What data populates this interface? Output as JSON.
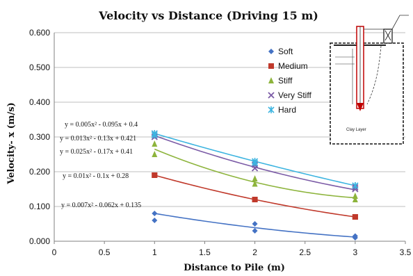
{
  "chart_data": {
    "type": "scatter",
    "title": "Velocity vs Distance (Driving 15 m)",
    "xlabel": "Distance to Pile (m)",
    "ylabel": "Velocity- x (m/s)",
    "xlim": [
      0,
      3.5
    ],
    "ylim": [
      0,
      0.6
    ],
    "x_ticks": [
      0,
      0.5,
      1,
      1.5,
      2,
      2.5,
      3,
      3.5
    ],
    "x_tick_labels": [
      "0",
      "0.5",
      "1",
      "1.5",
      "2",
      "2.5",
      "3",
      "3.5"
    ],
    "y_ticks": [
      0,
      0.1,
      0.2,
      0.3,
      0.4,
      0.5,
      0.6
    ],
    "y_tick_labels": [
      "0.000",
      "0.100",
      "0.200",
      "0.300",
      "0.400",
      "0.500",
      "0.600"
    ],
    "grid": "horizontal",
    "legend": "upper-right",
    "series": [
      {
        "name": "Soft",
        "marker": "diamond",
        "color": "#4472C4",
        "points": [
          [
            1,
            0.06
          ],
          [
            1,
            0.08
          ],
          [
            2,
            0.03
          ],
          [
            2,
            0.05
          ],
          [
            3,
            0.01
          ],
          [
            3,
            0.015
          ]
        ],
        "equation": "y = 0.007x² - 0.062x + 0.135",
        "coef": [
          0.007,
          -0.062,
          0.135
        ]
      },
      {
        "name": "Medium",
        "marker": "square",
        "color": "#C0392B",
        "points": [
          [
            1,
            0.19
          ],
          [
            1,
            0.19
          ],
          [
            2,
            0.12
          ],
          [
            2,
            0.12
          ],
          [
            3,
            0.07
          ],
          [
            3,
            0.07
          ]
        ],
        "equation": "y = 0.01x² - 0.1x + 0.28",
        "coef": [
          0.01,
          -0.1,
          0.28
        ]
      },
      {
        "name": "Stiff",
        "marker": "triangle",
        "color": "#8DB43C",
        "points": [
          [
            1,
            0.25
          ],
          [
            1,
            0.28
          ],
          [
            2,
            0.165
          ],
          [
            2,
            0.18
          ],
          [
            3,
            0.12
          ],
          [
            3,
            0.13
          ]
        ],
        "equation": "y = 0.025x² - 0.17x + 0.41",
        "coef": [
          0.025,
          -0.17,
          0.41
        ]
      },
      {
        "name": "Very Stiff",
        "marker": "x",
        "color": "#7B5BA6",
        "points": [
          [
            1,
            0.3
          ],
          [
            1,
            0.31
          ],
          [
            2,
            0.21
          ],
          [
            2,
            0.22
          ],
          [
            3,
            0.15
          ],
          [
            3,
            0.155
          ]
        ],
        "equation": "y = 0.013x² - 0.13x + 0.421",
        "coef": [
          0.013,
          -0.13,
          0.421
        ]
      },
      {
        "name": "Hard",
        "marker": "star",
        "color": "#3CB4E0",
        "points": [
          [
            1,
            0.305
          ],
          [
            1,
            0.31
          ],
          [
            2,
            0.225
          ],
          [
            2,
            0.23
          ],
          [
            3,
            0.16
          ],
          [
            3,
            0.16
          ]
        ],
        "equation": "y = 0.005x² - 0.095x + 0.4",
        "coef": [
          0.005,
          -0.095,
          0.4
        ]
      }
    ],
    "equation_labels_order": [
      "Hard",
      "Very Stiff",
      "Stiff",
      "Medium",
      "Soft"
    ],
    "inset": {
      "labels": [
        "Clay Layer"
      ]
    }
  }
}
